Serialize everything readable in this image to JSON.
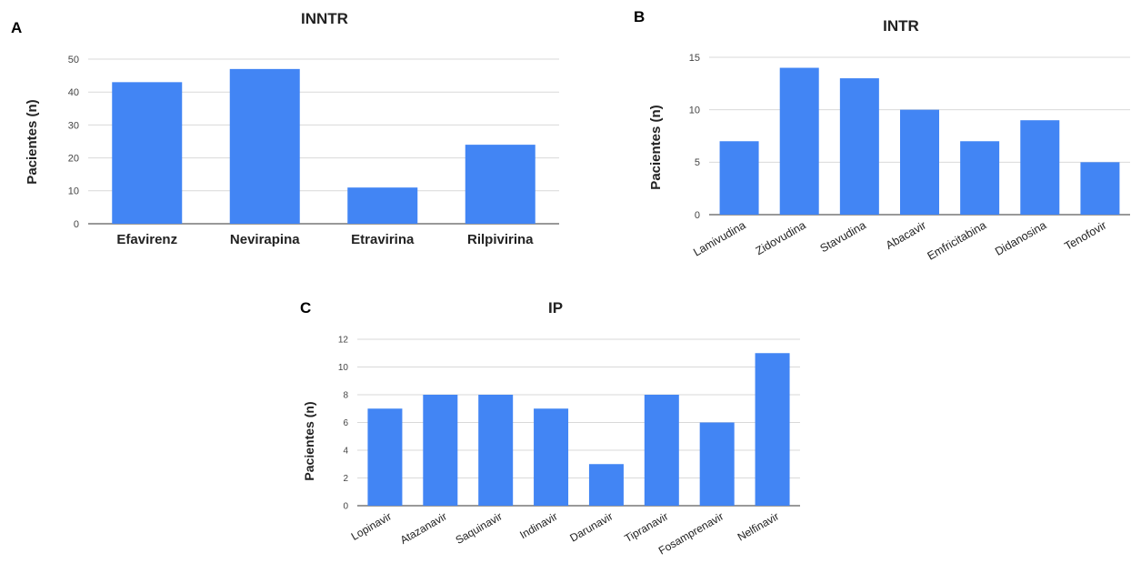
{
  "chart_data": [
    {
      "panel": "A",
      "type": "bar",
      "title": "INNTR",
      "xlabel": "",
      "ylabel": "Pacientes (n)",
      "ylim": [
        0,
        50
      ],
      "yticks": [
        0,
        10,
        20,
        30,
        40,
        50
      ],
      "grid": true,
      "categories": [
        "Efavirenz",
        "Nevirapina",
        "Etravirina",
        "Rilpivirina"
      ],
      "values": [
        43,
        47,
        11,
        24
      ],
      "bar_color": "#4285F4"
    },
    {
      "panel": "B",
      "type": "bar",
      "title": "INTR",
      "xlabel": "",
      "ylabel": "Pacientes (n)",
      "ylim": [
        0,
        15
      ],
      "yticks": [
        0,
        5,
        10,
        15
      ],
      "grid": true,
      "categories": [
        "Lamivudina",
        "Zidovudina",
        "Stavudina",
        "Abacavir",
        "Emfricitabina",
        "Didanosina",
        "Tenofovir"
      ],
      "values": [
        7,
        14,
        13,
        10,
        7,
        9,
        5
      ],
      "bar_color": "#4285F4"
    },
    {
      "panel": "C",
      "type": "bar",
      "title": "IP",
      "xlabel": "",
      "ylabel": "Pacientes (n)",
      "ylim": [
        0,
        12
      ],
      "yticks": [
        0,
        2,
        4,
        6,
        8,
        10,
        12
      ],
      "grid": true,
      "categories": [
        "Lopinavir",
        "Atazanavir",
        "Saquinavir",
        "Indinavir",
        "Darunavir",
        "Tipranavir",
        "Fosamprenavir",
        "Nelfinavir"
      ],
      "values": [
        7,
        8,
        8,
        7,
        3,
        8,
        6,
        11
      ],
      "bar_color": "#4285F4"
    }
  ]
}
